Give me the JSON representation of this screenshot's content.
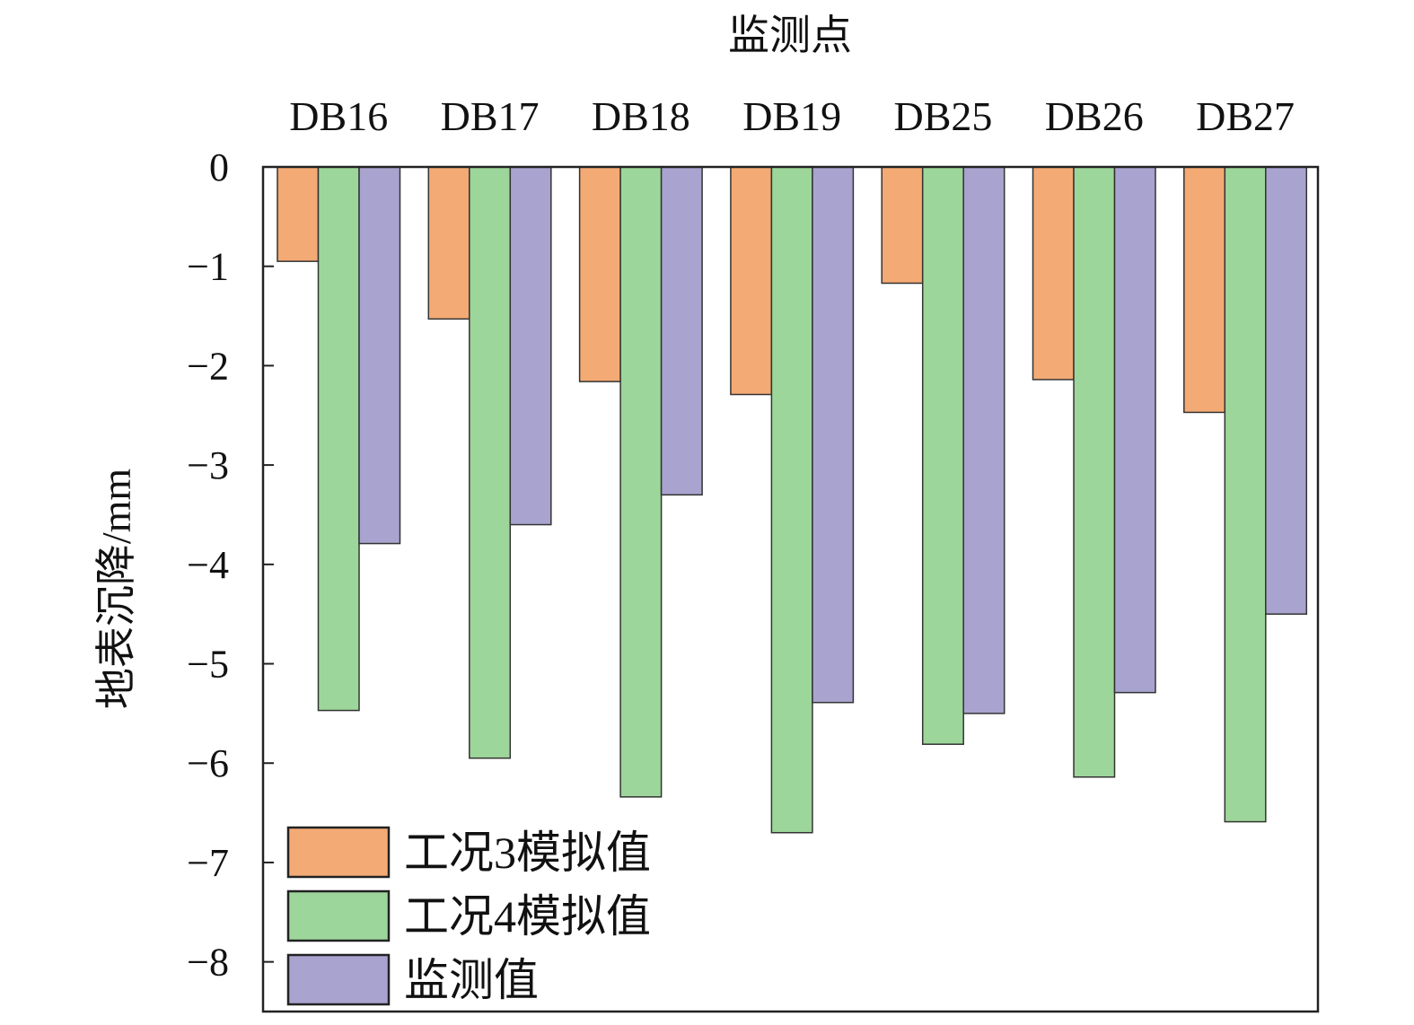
{
  "chart_data": {
    "type": "bar",
    "title": "监测点",
    "xlabel": "监测点",
    "ylabel": "地表沉降/mm",
    "categories": [
      "DB16",
      "DB17",
      "DB18",
      "DB19",
      "DB25",
      "DB26",
      "DB27"
    ],
    "series": [
      {
        "name": "工况3模拟值",
        "color": "#F4AA74",
        "values": [
          -0.95,
          -1.53,
          -2.16,
          -2.29,
          -1.17,
          -2.14,
          -2.47
        ]
      },
      {
        "name": "工况4模拟值",
        "color": "#9DD69A",
        "values": [
          -5.47,
          -5.95,
          -6.34,
          -6.7,
          -5.81,
          -6.14,
          -6.59
        ]
      },
      {
        "name": "监测值",
        "color": "#A9A3CF",
        "values": [
          -3.79,
          -3.6,
          -3.3,
          -5.39,
          -5.5,
          -5.29,
          -4.5
        ]
      }
    ],
    "ylim": [
      -8.5,
      0
    ],
    "yticks": [
      "0",
      "−1",
      "−2",
      "−3",
      "−4",
      "−5",
      "−6",
      "−7",
      "−8"
    ],
    "ytick_values": [
      0,
      -1,
      -2,
      -3,
      -4,
      -5,
      -6,
      -7,
      -8
    ],
    "legend": "bottom-left",
    "grid": false
  }
}
